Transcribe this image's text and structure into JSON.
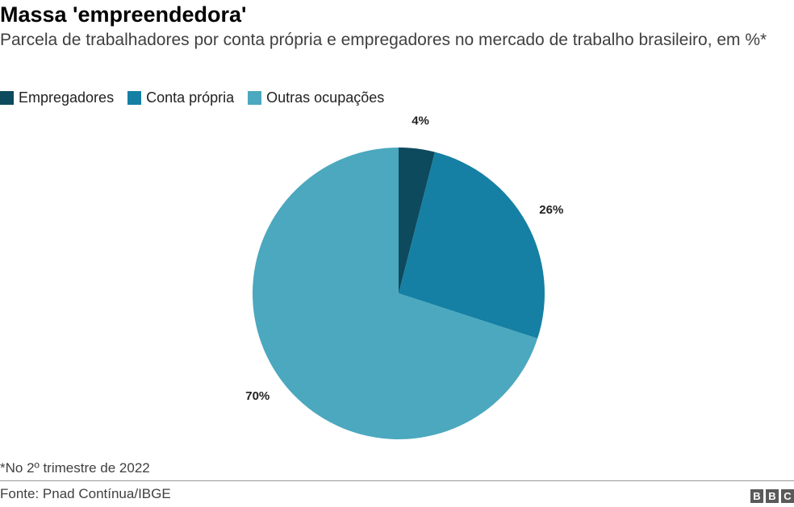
{
  "chart_data": {
    "type": "pie",
    "title": "Massa 'empreendedora'",
    "subtitle": "Parcela de trabalhadores por conta própria e empregadores no mercado de trabalho brasileiro, em %*",
    "categories": [
      "Empregadores",
      "Conta própria",
      "Outras ocupações"
    ],
    "values": [
      4,
      26,
      70
    ],
    "data_labels": [
      "4%",
      "26%",
      "70%"
    ],
    "colors": [
      "#0d4a5e",
      "#1580a3",
      "#4ba8be"
    ],
    "legend_position": "top-left",
    "footnote": "*No 2º trimestre de 2022",
    "source": "Fonte: Pnad Contínua/IBGE"
  },
  "branding": {
    "logo_letters": [
      "B",
      "B",
      "C"
    ]
  }
}
